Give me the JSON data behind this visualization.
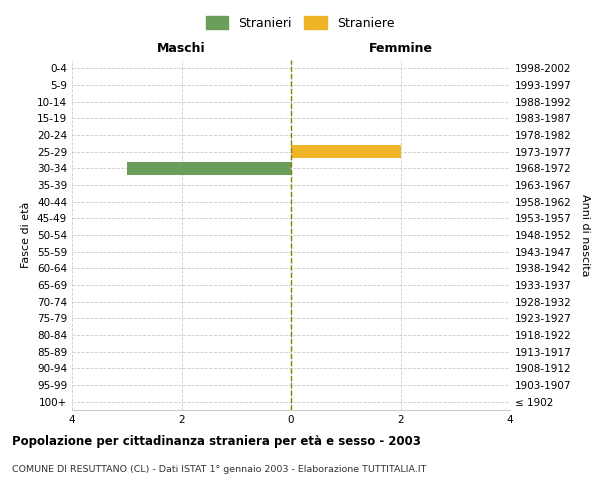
{
  "age_groups": [
    "100+",
    "95-99",
    "90-94",
    "85-89",
    "80-84",
    "75-79",
    "70-74",
    "65-69",
    "60-64",
    "55-59",
    "50-54",
    "45-49",
    "40-44",
    "35-39",
    "30-34",
    "25-29",
    "20-24",
    "15-19",
    "10-14",
    "5-9",
    "0-4"
  ],
  "birth_years": [
    "≤ 1902",
    "1903-1907",
    "1908-1912",
    "1913-1917",
    "1918-1922",
    "1923-1927",
    "1928-1932",
    "1933-1937",
    "1938-1942",
    "1943-1947",
    "1948-1952",
    "1953-1957",
    "1958-1962",
    "1963-1967",
    "1968-1972",
    "1973-1977",
    "1978-1982",
    "1983-1987",
    "1988-1992",
    "1993-1997",
    "1998-2002"
  ],
  "males": [
    0,
    0,
    0,
    0,
    0,
    0,
    0,
    0,
    0,
    0,
    0,
    0,
    0,
    0,
    3,
    0,
    0,
    0,
    0,
    0,
    0
  ],
  "females": [
    0,
    0,
    0,
    0,
    0,
    0,
    0,
    0,
    0,
    0,
    0,
    0,
    0,
    0,
    0,
    2,
    0,
    0,
    0,
    0,
    0
  ],
  "male_color": "#6a9e5b",
  "female_color": "#f0b429",
  "xlim": 4,
  "title_main": "Popolazione per cittadinanza straniera per età e sesso - 2003",
  "title_sub": "COMUNE DI RESUTTANO (CL) - Dati ISTAT 1° gennaio 2003 - Elaborazione TUTTITALIA.IT",
  "legend_male": "Stranieri",
  "legend_female": "Straniere",
  "label_left": "Maschi",
  "label_right": "Femmine",
  "ylabel_left": "Fasce di età",
  "ylabel_right": "Anni di nascita",
  "background_color": "#ffffff",
  "grid_color": "#cccccc",
  "center_line_color": "#808000"
}
